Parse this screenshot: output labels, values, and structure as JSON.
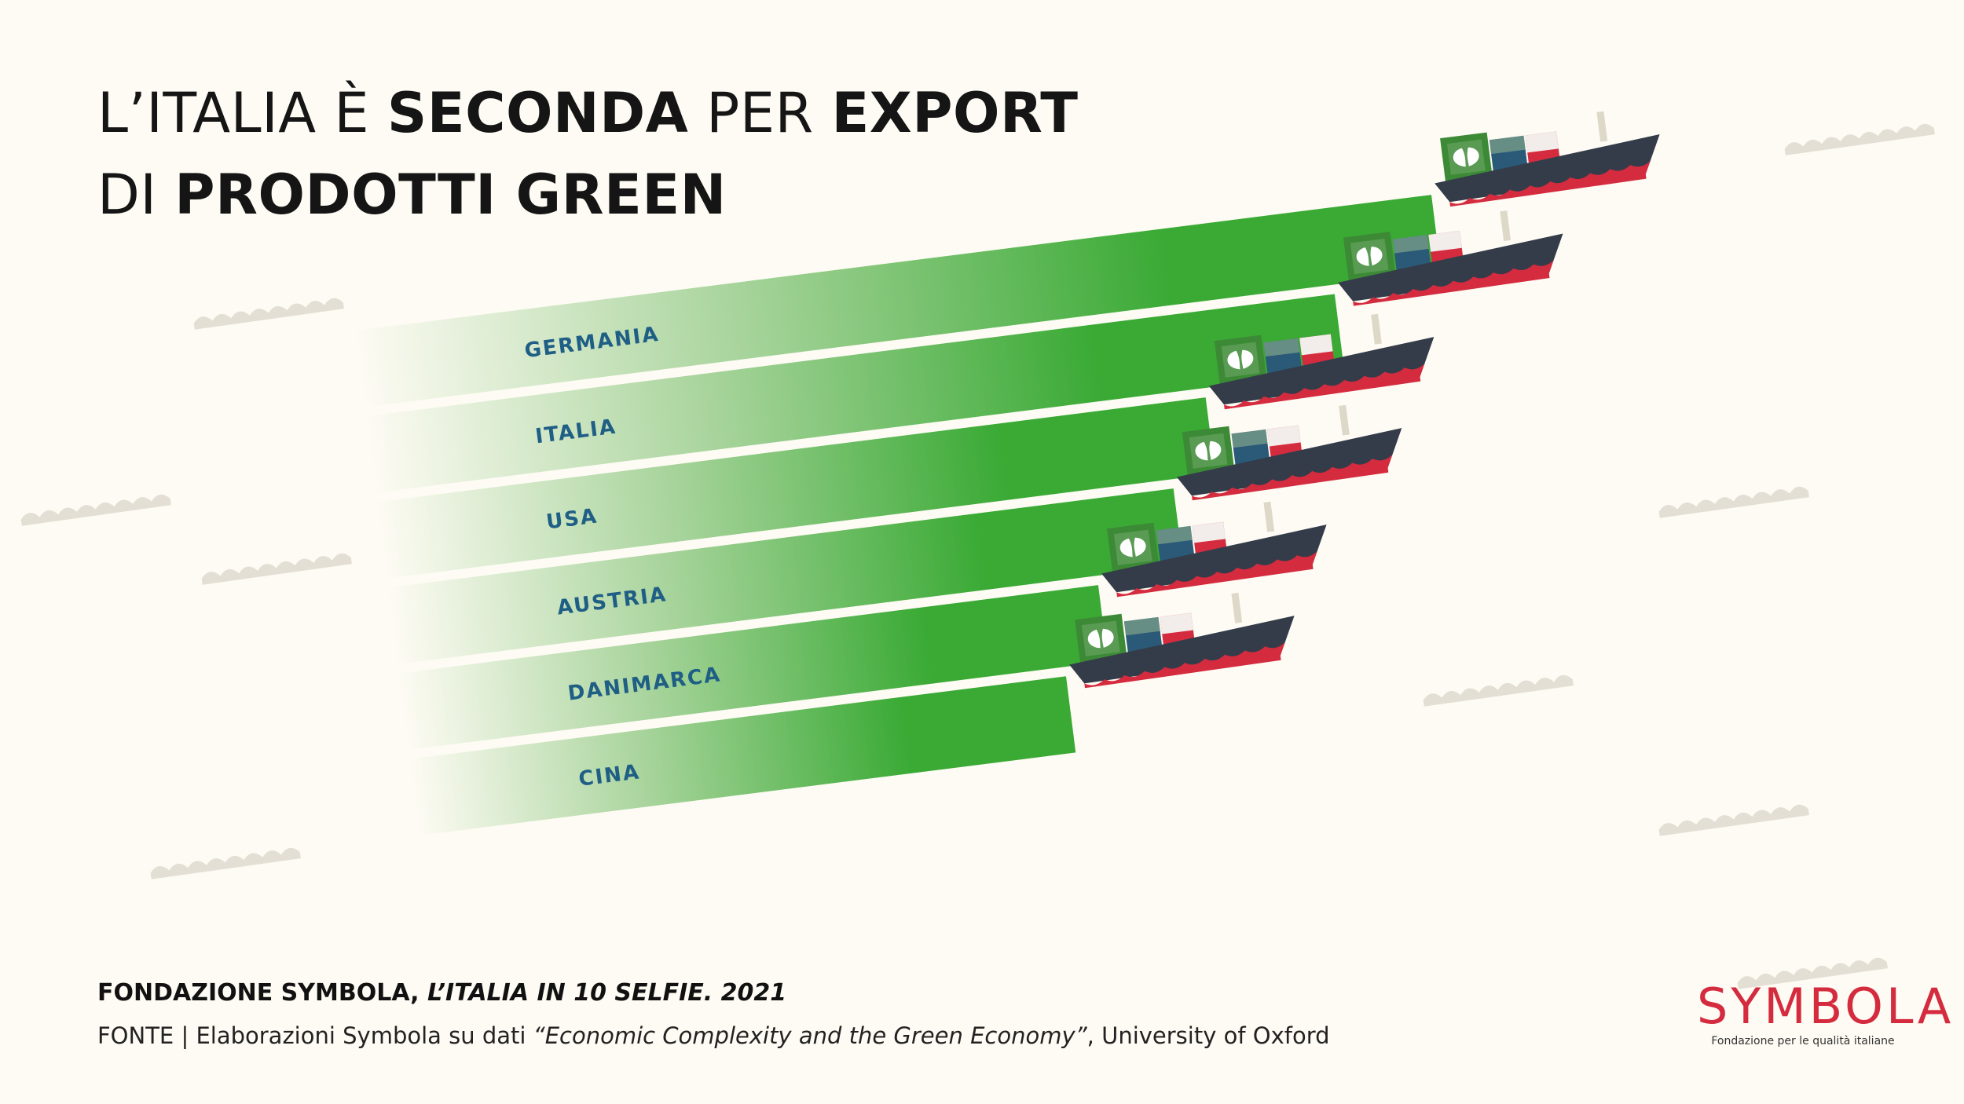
{
  "header": {
    "title_p1": "L’ITALIA È ",
    "title_b1": "SECONDA",
    "title_p2": " PER ",
    "title_b2": "EXPORT",
    "title_p3": "DI ",
    "title_b3": "PRODOTTI GREEN"
  },
  "chart_data": {
    "type": "bar",
    "orientation": "horizontal",
    "categories": [
      "GERMANIA",
      "ITALIA",
      "USA",
      "AUSTRIA",
      "DANIMARCA",
      "CINA"
    ],
    "values": [
      100,
      90,
      77,
      73,
      65,
      61
    ],
    "value_axis": "not shown",
    "grid": false,
    "legend": "none",
    "colors": {
      "bar": "#3aaa35",
      "bar_fade": "#fdfbf3",
      "label": "#1f5e85"
    }
  },
  "footer": {
    "org": "FONDAZIONE SYMBOLA, ",
    "publication": "L’ITALIA IN 10 SELFIE. 2021",
    "source_prefix": "FONTE | Elaborazioni Symbola su dati ",
    "source_title": "“Economic Complexity and the Green Economy”",
    "source_suffix": ", University of Oxford"
  },
  "logo": {
    "word": "SYMBOLA",
    "tagline": "Fondazione per le qualità italiane"
  },
  "colors": {
    "background": "#fdfbf3",
    "ship_hull": "#343c4a",
    "ship_keel": "#d52b3f",
    "container_green": "#3c8a36",
    "container_blue": "#2b5a78",
    "container_red": "#d52b3f",
    "wave": "#cfc9bc"
  },
  "icons": [
    "cargo-ship-icon",
    "leaf-icon",
    "wave-icon"
  ]
}
